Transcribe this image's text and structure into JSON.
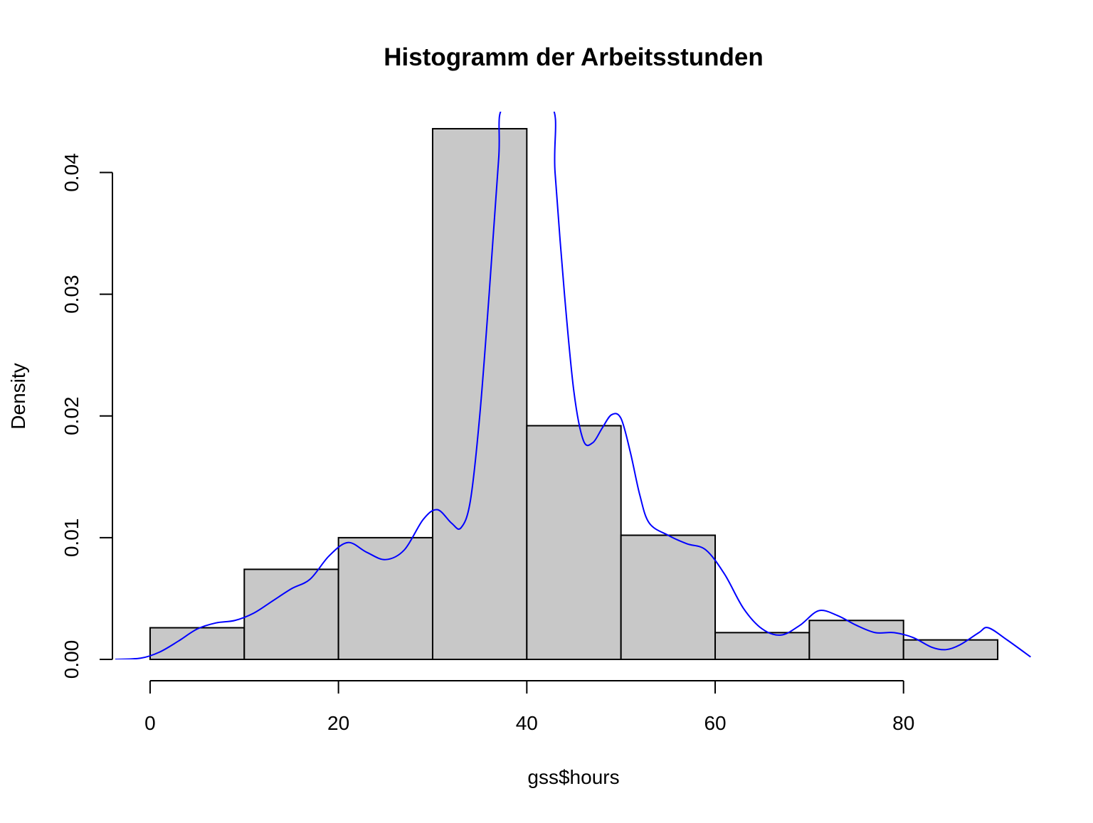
{
  "chart_data": {
    "type": "bar",
    "title": "Histogramm der Arbeitsstunden",
    "xlabel": "gss$hours",
    "ylabel": "Density",
    "xlim": [
      -4,
      94
    ],
    "ylim": [
      0,
      0.045
    ],
    "x_ticks": [
      0,
      20,
      40,
      60,
      80
    ],
    "y_ticks": [
      0.0,
      0.01,
      0.02,
      0.03,
      0.04
    ],
    "x_tick_labels": [
      "0",
      "20",
      "40",
      "60",
      "80"
    ],
    "y_tick_labels": [
      "0.00",
      "0.01",
      "0.02",
      "0.03",
      "0.04"
    ],
    "bar_fill": "#c8c8c8",
    "bar_stroke": "#000000",
    "bins": [
      {
        "from": 0,
        "to": 10,
        "density": 0.0026
      },
      {
        "from": 10,
        "to": 20,
        "density": 0.0074
      },
      {
        "from": 20,
        "to": 30,
        "density": 0.01
      },
      {
        "from": 30,
        "to": 40,
        "density": 0.0436
      },
      {
        "from": 40,
        "to": 50,
        "density": 0.0192
      },
      {
        "from": 50,
        "to": 60,
        "density": 0.0102
      },
      {
        "from": 60,
        "to": 70,
        "density": 0.0022
      },
      {
        "from": 70,
        "to": 80,
        "density": 0.0032
      },
      {
        "from": 80,
        "to": 90,
        "density": 0.0016
      }
    ],
    "density_line": {
      "color": "#0000ff",
      "x": [
        -3.7,
        -1,
        1,
        3,
        5,
        7,
        9,
        11,
        13,
        15,
        17,
        19,
        21,
        23,
        25,
        27,
        29,
        30.5,
        32,
        33,
        34,
        35,
        36,
        37,
        37.6,
        42.6,
        43,
        44,
        45,
        46,
        47,
        48,
        49,
        50,
        51,
        52,
        53,
        55,
        57,
        59,
        61,
        63,
        65,
        67,
        69,
        71,
        73,
        75,
        77,
        79,
        81,
        83,
        84.5,
        86,
        88,
        89,
        91,
        93.5
      ],
      "y": [
        0.0,
        0.0001,
        0.0006,
        0.0015,
        0.0025,
        0.003,
        0.0032,
        0.0038,
        0.0048,
        0.0058,
        0.0066,
        0.0085,
        0.0096,
        0.0088,
        0.0082,
        0.009,
        0.0115,
        0.0123,
        0.0112,
        0.0108,
        0.013,
        0.02,
        0.03,
        0.041,
        0.0455,
        0.0455,
        0.04,
        0.03,
        0.022,
        0.018,
        0.0178,
        0.019,
        0.0201,
        0.0198,
        0.017,
        0.0135,
        0.0112,
        0.0102,
        0.0095,
        0.009,
        0.007,
        0.0042,
        0.0025,
        0.002,
        0.0028,
        0.004,
        0.0036,
        0.0028,
        0.0022,
        0.0022,
        0.0018,
        0.001,
        0.0008,
        0.0012,
        0.0022,
        0.0026,
        0.0016,
        0.0002
      ]
    }
  }
}
